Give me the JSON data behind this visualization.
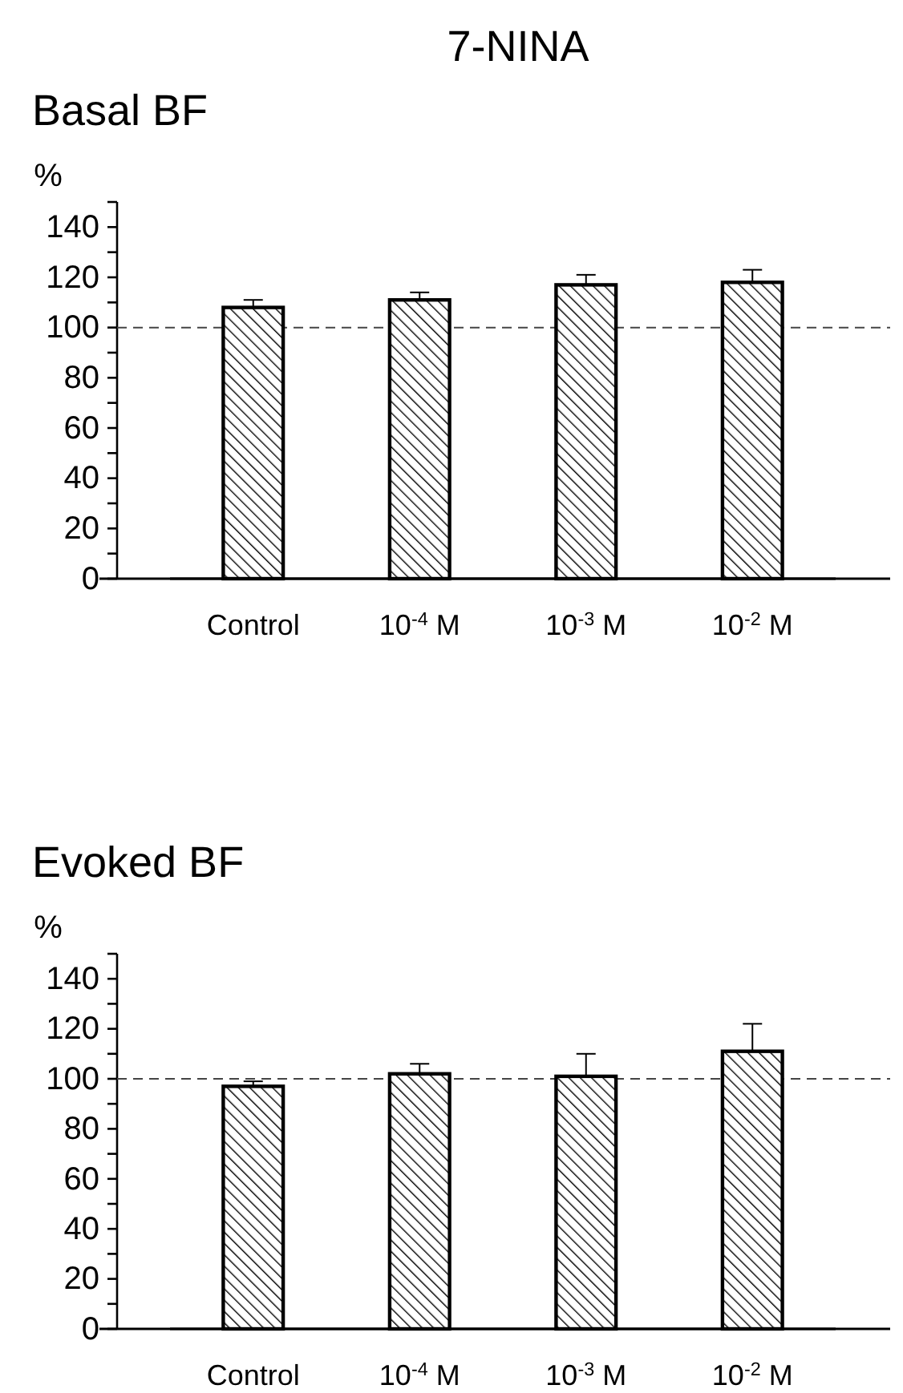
{
  "chart_data": [
    {
      "type": "bar",
      "title": "7-NINA",
      "subtitle": "Basal BF",
      "ylabel": "%",
      "categories": [
        "Control",
        "10$^{-4}$ M",
        "10$^{-3}$ M",
        "10$^{-2}$ M"
      ],
      "values": [
        108,
        111,
        117,
        118
      ],
      "errors": [
        [
          108,
          111
        ],
        [
          111,
          114
        ],
        [
          117,
          121
        ],
        [
          118,
          123
        ]
      ],
      "color": "#000000",
      "ylim": [
        0,
        150
      ],
      "yticks": [
        0,
        {
          "value": 10,
          "label": null
        },
        20,
        {
          "value": 30,
          "label": null
        },
        40,
        {
          "value": 50,
          "label": null
        },
        60,
        {
          "value": 70,
          "label": null
        },
        80,
        {
          "value": 90,
          "label": null
        },
        100,
        {
          "value": 110,
          "label": null
        },
        120,
        {
          "value": 130,
          "label": null
        },
        140,
        {
          "value": 150,
          "label": null
        }
      ],
      "ref_lines": [
        {
          "axis": "y",
          "value": 100,
          "label": null,
          "color": "#444444",
          "line_style": "dashed"
        }
      ]
    },
    {
      "type": "bar",
      "title": "Evoked BF",
      "ylabel": "%",
      "categories": [
        "Control",
        "10$^{-4}$ M",
        "10$^{-3}$ M",
        "10$^{-2}$ M"
      ],
      "values": [
        97,
        102,
        101,
        111
      ],
      "errors": [
        [
          97,
          99
        ],
        [
          102,
          106
        ],
        [
          101,
          110
        ],
        [
          111,
          122
        ]
      ],
      "color": "#000000",
      "ylim": [
        0,
        150
      ],
      "yticks": [
        0,
        {
          "value": 10,
          "label": null
        },
        20,
        {
          "value": 30,
          "label": null
        },
        40,
        {
          "value": 50,
          "label": null
        },
        60,
        {
          "value": 70,
          "label": null
        },
        80,
        {
          "value": 90,
          "label": null
        },
        100,
        {
          "value": 110,
          "label": null
        },
        120,
        {
          "value": 130,
          "label": null
        },
        140,
        {
          "value": 150,
          "label": null
        }
      ],
      "ref_lines": [
        {
          "axis": "y",
          "value": 100,
          "label": null,
          "color": "#444444",
          "line_style": "dashed"
        }
      ]
    }
  ]
}
